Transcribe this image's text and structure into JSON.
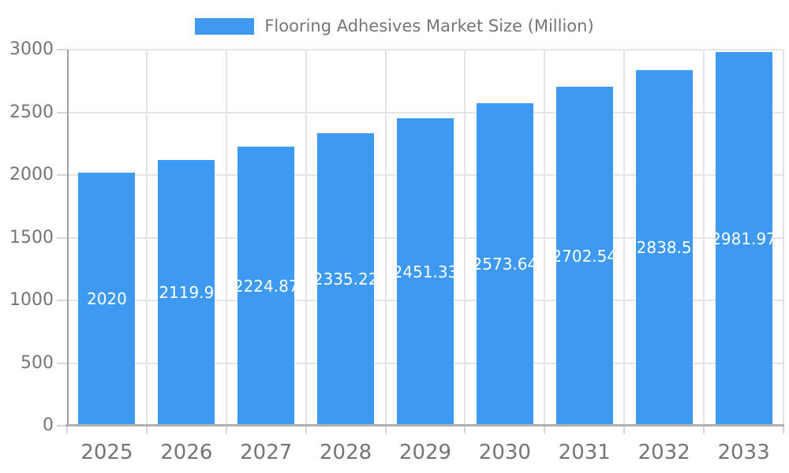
{
  "legend": {
    "label": "Flooring Adhesives Market Size (Million)"
  },
  "colors": {
    "bar": "#3d9af0",
    "bar_label_text": "#ffffff",
    "axis_text": "#757575",
    "grid": "#e6e6e6",
    "tick": "#d6d6d6",
    "axis_line": "#a0a0a0",
    "axis_line_bottom": "#b0b0b0",
    "background": "#ffffff"
  },
  "chart_data": {
    "type": "bar",
    "title": "",
    "legend_entries": [
      "Flooring Adhesives Market Size (Million)"
    ],
    "legend_position": "top-center",
    "categories": [
      "2025",
      "2026",
      "2027",
      "2028",
      "2029",
      "2030",
      "2031",
      "2032",
      "2033"
    ],
    "series": [
      {
        "name": "Flooring Adhesives Market Size (Million)",
        "values": [
          2020,
          2119.9,
          2224.87,
          2335.22,
          2451.33,
          2573.64,
          2702.54,
          2838.5,
          2981.97
        ],
        "bar_labels": [
          "2020",
          "2119.9",
          "2224.87",
          "2335.22",
          "2451.33",
          "2573.64",
          "2702.54",
          "2838.5",
          "2981.97"
        ]
      }
    ],
    "xlabel": "",
    "ylabel": "",
    "ylim": [
      0,
      3000
    ],
    "yticks": [
      0,
      500,
      1000,
      1500,
      2000,
      2500,
      3000
    ],
    "grid": true,
    "value_labels_position": "inside-center"
  }
}
